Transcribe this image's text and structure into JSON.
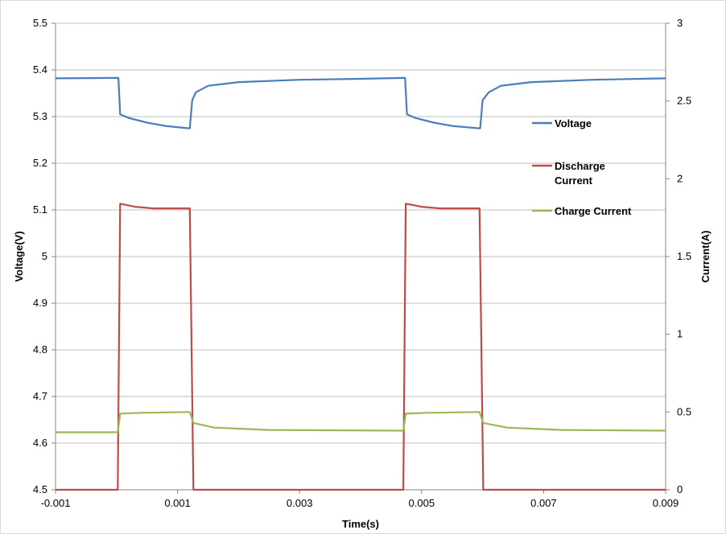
{
  "chart_data": {
    "type": "line",
    "title": "",
    "xlabel": "Time(s)",
    "ylabel": "Voltage(V)",
    "y2label": "Current(A)",
    "xlim": [
      -0.001,
      0.009
    ],
    "ylim": [
      4.5,
      5.5
    ],
    "y2lim": [
      0,
      3
    ],
    "xticks": [
      "-0.001",
      "0.001",
      "0.003",
      "0.005",
      "0.007",
      "0.009"
    ],
    "yticks": [
      "4.5",
      "4.6",
      "4.7",
      "4.8",
      "4.9",
      "5",
      "5.1",
      "5.2",
      "5.3",
      "5.4",
      "5.5"
    ],
    "y2ticks": [
      "0",
      "0.5",
      "1",
      "1.5",
      "2",
      "2.5",
      "3"
    ],
    "grid": "horizontal",
    "legend_position": "right",
    "series": [
      {
        "name": "Voltage",
        "axis": "left",
        "color": "#4a7ebb",
        "points": [
          [
            -0.001,
            5.382
          ],
          [
            0.0,
            5.383
          ],
          [
            3e-05,
            5.383
          ],
          [
            6e-05,
            5.305
          ],
          [
            0.0002,
            5.297
          ],
          [
            0.0005,
            5.287
          ],
          [
            0.0008,
            5.28
          ],
          [
            0.00118,
            5.275
          ],
          [
            0.0012,
            5.275
          ],
          [
            0.00124,
            5.335
          ],
          [
            0.0013,
            5.352
          ],
          [
            0.0015,
            5.366
          ],
          [
            0.002,
            5.374
          ],
          [
            0.003,
            5.379
          ],
          [
            0.004,
            5.381
          ],
          [
            0.0047,
            5.383
          ],
          [
            0.00473,
            5.383
          ],
          [
            0.00476,
            5.305
          ],
          [
            0.0049,
            5.297
          ],
          [
            0.0052,
            5.287
          ],
          [
            0.0055,
            5.28
          ],
          [
            0.00593,
            5.275
          ],
          [
            0.00596,
            5.275
          ],
          [
            0.006,
            5.335
          ],
          [
            0.0061,
            5.352
          ],
          [
            0.0063,
            5.366
          ],
          [
            0.0068,
            5.374
          ],
          [
            0.0078,
            5.379
          ],
          [
            0.009,
            5.382
          ]
        ]
      },
      {
        "name": "Discharge Current",
        "axis": "right",
        "color": "#be4b48",
        "points": [
          [
            -0.001,
            0.0
          ],
          [
            2e-05,
            0.0
          ],
          [
            6e-05,
            1.84
          ],
          [
            0.0003,
            1.82
          ],
          [
            0.0006,
            1.81
          ],
          [
            0.00118,
            1.81
          ],
          [
            0.0012,
            1.81
          ],
          [
            0.00126,
            0.0
          ],
          [
            0.0047,
            0.0
          ],
          [
            0.00474,
            1.84
          ],
          [
            0.005,
            1.82
          ],
          [
            0.0053,
            1.81
          ],
          [
            0.00593,
            1.81
          ],
          [
            0.00595,
            1.81
          ],
          [
            0.00601,
            0.0
          ],
          [
            0.009,
            0.0
          ]
        ]
      },
      {
        "name": "Charge Current",
        "axis": "right",
        "color": "#98b954",
        "points": [
          [
            -0.001,
            0.37
          ],
          [
            2e-05,
            0.37
          ],
          [
            6e-05,
            0.49
          ],
          [
            0.0004,
            0.495
          ],
          [
            0.0012,
            0.5
          ],
          [
            0.00126,
            0.43
          ],
          [
            0.0016,
            0.4
          ],
          [
            0.0025,
            0.385
          ],
          [
            0.0047,
            0.38
          ],
          [
            0.00474,
            0.49
          ],
          [
            0.0051,
            0.495
          ],
          [
            0.00595,
            0.5
          ],
          [
            0.00601,
            0.43
          ],
          [
            0.0064,
            0.4
          ],
          [
            0.0073,
            0.385
          ],
          [
            0.009,
            0.38
          ]
        ]
      }
    ]
  }
}
